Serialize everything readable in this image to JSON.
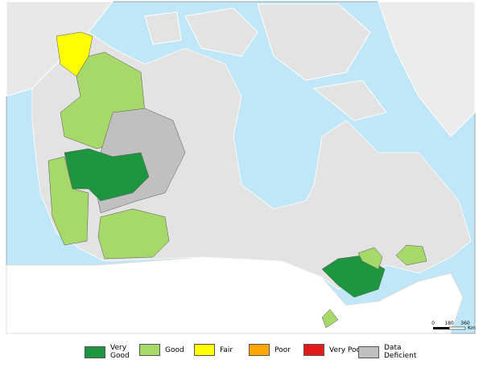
{
  "legend": {
    "items": [
      {
        "label": "Very Good",
        "color": "#1e9640"
      },
      {
        "label": "Good",
        "color": "#a6d96a"
      },
      {
        "label": "Fair",
        "color": "#ffff00"
      },
      {
        "label": "Poor",
        "color": "#ffa500"
      },
      {
        "label": "Very Poor",
        "color": "#e31a1c"
      },
      {
        "label": "Data Deficient",
        "color": "#c0c0c0"
      }
    ]
  },
  "scale_bar": {
    "labels": [
      "0",
      "180",
      "360"
    ],
    "unit": "Km"
  }
}
